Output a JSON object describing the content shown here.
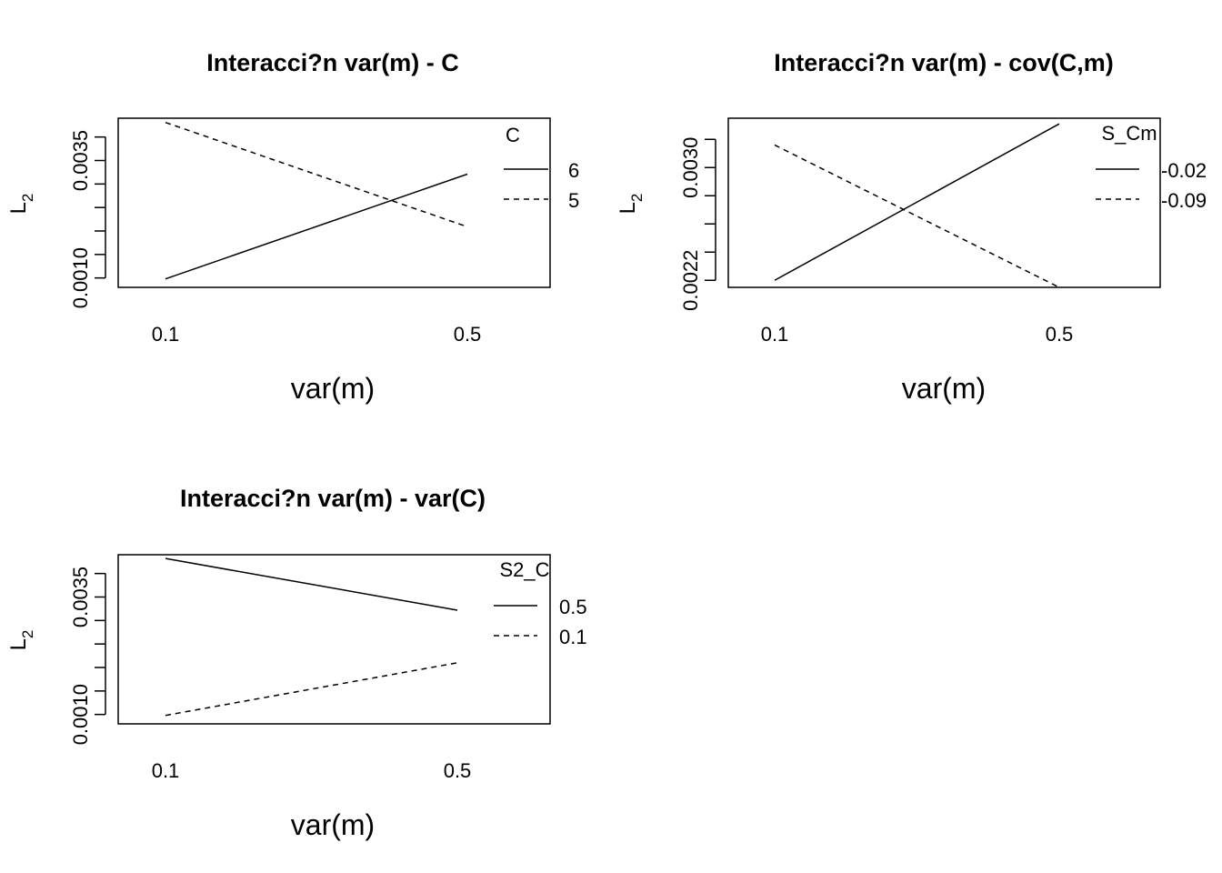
{
  "chart_data": [
    {
      "type": "line",
      "title": "Interacci?n var(m) - C",
      "xlabel": "var(m)",
      "ylabel": "L",
      "ylabel_sub": "2",
      "categories": [
        "0.1",
        "0.5"
      ],
      "ylim": [
        0.0008,
        0.0044
      ],
      "yticks": [
        0.001,
        0.0015,
        0.002,
        0.0025,
        0.003,
        0.0035,
        0.004
      ],
      "ytick_labels": [
        {
          "value": 0.001,
          "label": "0.0010"
        },
        {
          "value": 0.0035,
          "label": "0.0035"
        }
      ],
      "legend_title": "C",
      "legend_position": "right",
      "series": [
        {
          "name": "6",
          "dash": "solid",
          "values": [
            0.00098,
            0.00321
          ]
        },
        {
          "name": "5",
          "dash": "dashed",
          "values": [
            0.00431,
            0.00209
          ]
        }
      ]
    },
    {
      "type": "line",
      "title": "Interacci?n var(m) - cov(C,m)",
      "xlabel": "var(m)",
      "ylabel": "L",
      "ylabel_sub": "2",
      "categories": [
        "0.1",
        "0.5"
      ],
      "ylim": [
        0.00215,
        0.00335
      ],
      "yticks": [
        0.0022,
        0.0024,
        0.0026,
        0.0028,
        0.003,
        0.0032
      ],
      "ytick_labels": [
        {
          "value": 0.0022,
          "label": "0.0022"
        },
        {
          "value": 0.003,
          "label": "0.0030"
        }
      ],
      "legend_title": "S_Cm",
      "legend_position": "right",
      "series": [
        {
          "name": "-0.02",
          "dash": "solid",
          "values": [
            0.0022,
            0.00331
          ]
        },
        {
          "name": "-0.09",
          "dash": "dashed",
          "values": [
            0.00316,
            0.00215
          ]
        }
      ]
    },
    {
      "type": "line",
      "title": "Interacci?n var(m) - var(C)",
      "xlabel": "var(m)",
      "ylabel": "L",
      "ylabel_sub": "2",
      "categories": [
        "0.1",
        "0.5"
      ],
      "ylim": [
        0.0008,
        0.0044
      ],
      "yticks": [
        0.001,
        0.0015,
        0.002,
        0.0025,
        0.003,
        0.0035,
        0.004
      ],
      "ytick_labels": [
        {
          "value": 0.001,
          "label": "0.0010"
        },
        {
          "value": 0.0035,
          "label": "0.0035"
        }
      ],
      "legend_title": "S2_C",
      "legend_position": "right",
      "series": [
        {
          "name": "0.5",
          "dash": "solid",
          "values": [
            0.00432,
            0.00322
          ]
        },
        {
          "name": "0.1",
          "dash": "dashed",
          "values": [
            0.00098,
            0.0021
          ]
        }
      ]
    }
  ]
}
